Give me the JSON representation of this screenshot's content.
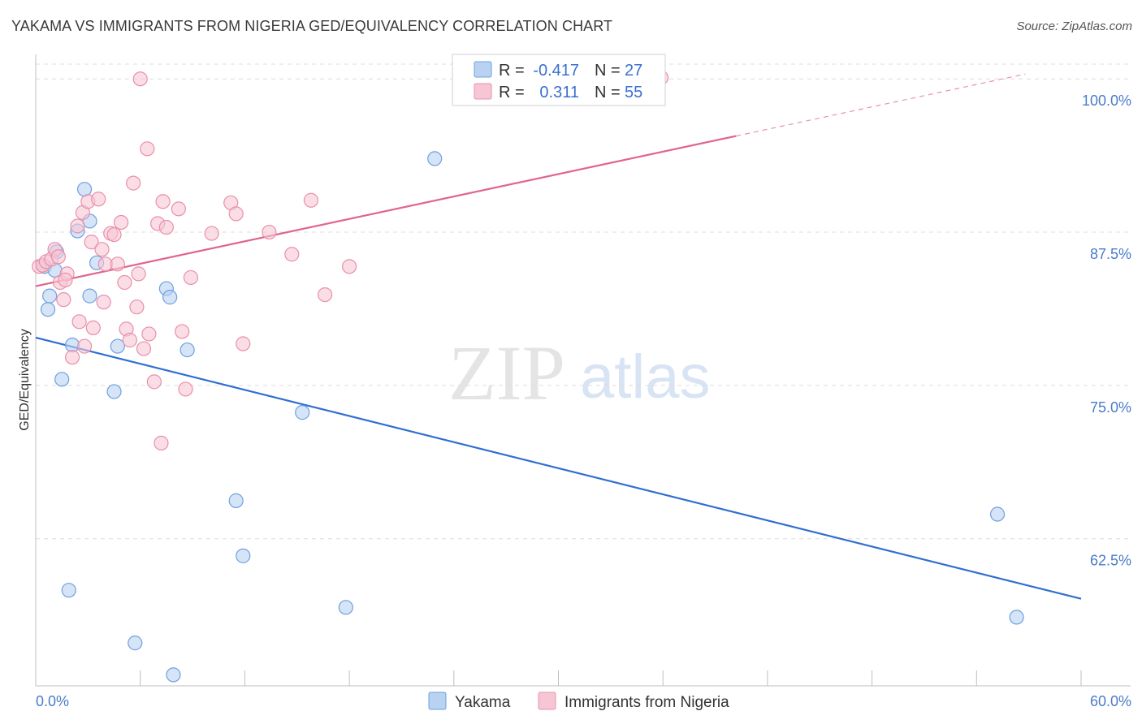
{
  "title": "YAKAMA VS IMMIGRANTS FROM NIGERIA GED/EQUIVALENCY CORRELATION CHART",
  "source": "Source: ZipAtlas.com",
  "watermark": {
    "zip": "ZIP",
    "atlas": "atlas"
  },
  "chart_data": {
    "type": "scatter",
    "title": "YAKAMA VS IMMIGRANTS FROM NIGERIA GED/EQUIVALENCY CORRELATION CHART",
    "xlabel": "",
    "ylabel": "GED/Equivalency",
    "xlim": [
      0,
      60
    ],
    "ylim": [
      50.5,
      102
    ],
    "x_tick_labels": [
      "0.0%",
      "60.0%"
    ],
    "y_ticks": [
      62.5,
      75.0,
      87.5,
      100.0
    ],
    "y_tick_labels": [
      "62.5%",
      "75.0%",
      "87.5%",
      "100.0%"
    ],
    "grid": true,
    "legend_position": "top-center",
    "series": [
      {
        "name": "Yakama",
        "color": "#6fa0e0",
        "fill": "#b9d2f2",
        "R": "-0.417",
        "N": "27",
        "trend": {
          "x0": 0,
          "y0": 78.9,
          "x1": 60,
          "y1": 57.6,
          "dashed_from": null
        },
        "points": [
          [
            0.5,
            84.7
          ],
          [
            0.7,
            81.2
          ],
          [
            0.8,
            82.3
          ],
          [
            1.1,
            84.4
          ],
          [
            1.2,
            85.9
          ],
          [
            1.5,
            75.5
          ],
          [
            1.9,
            58.3
          ],
          [
            2.1,
            78.3
          ],
          [
            2.4,
            87.6
          ],
          [
            2.8,
            91.0
          ],
          [
            3.1,
            88.4
          ],
          [
            3.1,
            82.3
          ],
          [
            3.5,
            85.0
          ],
          [
            4.5,
            74.5
          ],
          [
            4.7,
            78.2
          ],
          [
            5.7,
            54.0
          ],
          [
            7.5,
            82.9
          ],
          [
            7.7,
            82.2
          ],
          [
            7.9,
            51.4
          ],
          [
            8.7,
            77.9
          ],
          [
            11.5,
            65.6
          ],
          [
            11.9,
            61.1
          ],
          [
            15.3,
            72.8
          ],
          [
            17.8,
            56.9
          ],
          [
            22.9,
            93.5
          ],
          [
            55.2,
            64.5
          ],
          [
            56.3,
            56.1
          ]
        ]
      },
      {
        "name": "Immigrants from Nigeria",
        "color": "#e890ab",
        "fill": "#f7c6d4",
        "R": "0.311",
        "N": "55",
        "trend": {
          "x0": 0,
          "y0": 83.1,
          "x1": 56.8,
          "y1": 100.4,
          "dashed_from": 40.2
        },
        "points": [
          [
            0.2,
            84.7
          ],
          [
            0.4,
            84.8
          ],
          [
            0.6,
            85.1
          ],
          [
            0.9,
            85.3
          ],
          [
            1.1,
            86.1
          ],
          [
            1.3,
            85.5
          ],
          [
            1.4,
            83.4
          ],
          [
            1.6,
            82.0
          ],
          [
            1.8,
            84.1
          ],
          [
            1.7,
            83.6
          ],
          [
            2.1,
            77.3
          ],
          [
            2.4,
            88.0
          ],
          [
            2.5,
            80.2
          ],
          [
            2.7,
            89.1
          ],
          [
            2.8,
            78.2
          ],
          [
            3.0,
            90.0
          ],
          [
            3.2,
            86.7
          ],
          [
            3.3,
            79.7
          ],
          [
            3.6,
            90.2
          ],
          [
            3.8,
            86.1
          ],
          [
            3.9,
            81.8
          ],
          [
            4.0,
            84.9
          ],
          [
            4.3,
            87.4
          ],
          [
            4.5,
            87.3
          ],
          [
            4.7,
            84.9
          ],
          [
            4.9,
            88.3
          ],
          [
            5.1,
            83.4
          ],
          [
            5.2,
            79.6
          ],
          [
            5.4,
            78.7
          ],
          [
            5.6,
            91.5
          ],
          [
            5.8,
            81.4
          ],
          [
            5.9,
            84.1
          ],
          [
            6.0,
            100.0
          ],
          [
            6.2,
            78.0
          ],
          [
            6.4,
            94.3
          ],
          [
            6.5,
            79.2
          ],
          [
            6.8,
            75.3
          ],
          [
            7.0,
            88.2
          ],
          [
            7.2,
            70.3
          ],
          [
            7.3,
            90.0
          ],
          [
            7.5,
            87.9
          ],
          [
            8.2,
            89.4
          ],
          [
            8.4,
            79.4
          ],
          [
            8.6,
            74.7
          ],
          [
            8.9,
            83.8
          ],
          [
            10.1,
            87.4
          ],
          [
            11.2,
            89.9
          ],
          [
            11.5,
            89.0
          ],
          [
            11.9,
            78.4
          ],
          [
            13.4,
            87.5
          ],
          [
            14.7,
            85.7
          ],
          [
            15.8,
            90.1
          ],
          [
            16.6,
            82.4
          ],
          [
            18.0,
            84.7
          ],
          [
            35.9,
            100.1
          ]
        ]
      }
    ]
  }
}
